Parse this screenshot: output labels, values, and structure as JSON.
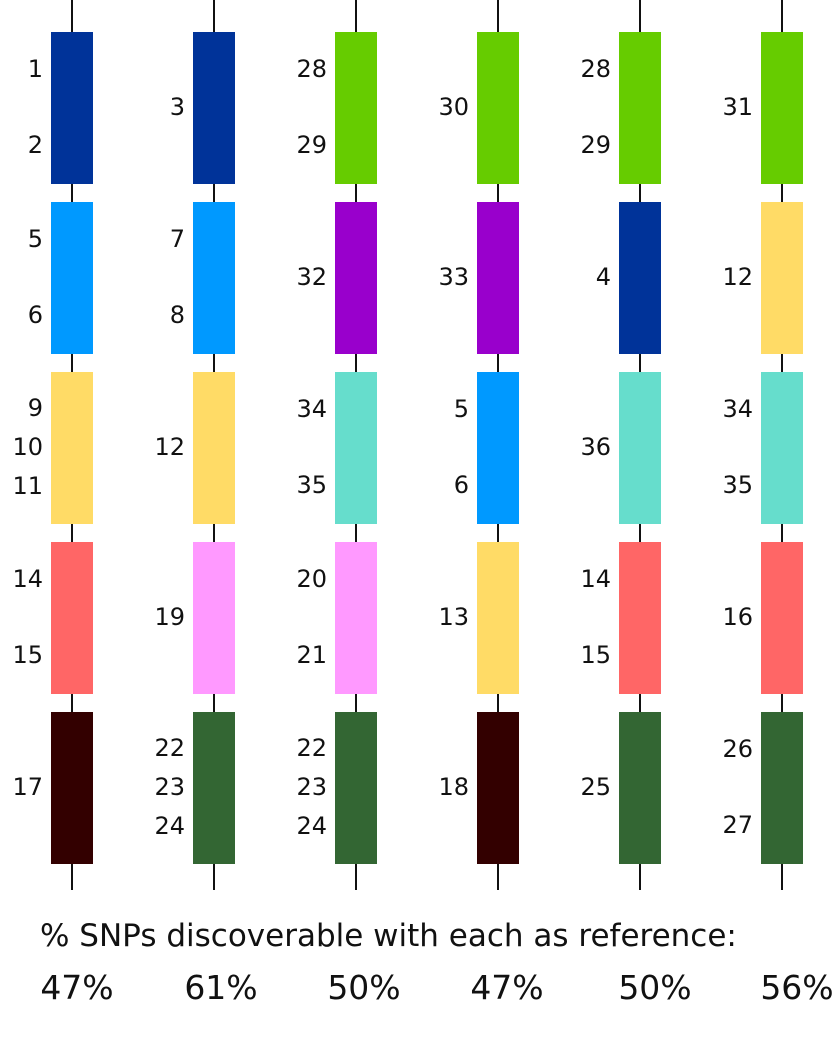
{
  "colors": {
    "dark_blue": "#003399",
    "light_blue": "#0099ff",
    "yellow": "#ffdb66",
    "salmon": "#ff6666",
    "dark_brown": "#330000",
    "pink": "#ff99ff",
    "dark_green": "#336633",
    "lime": "#66cc00",
    "purple": "#9900cc",
    "teal": "#66ddcc",
    "line": "#111111"
  },
  "chromosomes": [
    {
      "name": "chromosome-1",
      "blocks": [
        {
          "color": "dark_blue",
          "labels": [
            "1",
            "2"
          ]
        },
        {
          "color": "light_blue",
          "labels": [
            "5",
            "6"
          ]
        },
        {
          "color": "yellow",
          "labels": [
            "9",
            "10",
            "11"
          ]
        },
        {
          "color": "salmon",
          "labels": [
            "14",
            "15"
          ]
        },
        {
          "color": "dark_brown",
          "labels": [
            "17"
          ]
        }
      ]
    },
    {
      "name": "chromosome-2",
      "blocks": [
        {
          "color": "dark_blue",
          "labels": [
            "3"
          ]
        },
        {
          "color": "light_blue",
          "labels": [
            "7",
            "8"
          ]
        },
        {
          "color": "yellow",
          "labels": [
            "12"
          ]
        },
        {
          "color": "pink",
          "labels": [
            "19"
          ]
        },
        {
          "color": "dark_green",
          "labels": [
            "22",
            "23",
            "24"
          ]
        }
      ]
    },
    {
      "name": "chromosome-3",
      "blocks": [
        {
          "color": "lime",
          "labels": [
            "28",
            "29"
          ]
        },
        {
          "color": "purple",
          "labels": [
            "32"
          ]
        },
        {
          "color": "teal",
          "labels": [
            "34",
            "35"
          ]
        },
        {
          "color": "pink",
          "labels": [
            "20",
            "21"
          ]
        },
        {
          "color": "dark_green",
          "labels": [
            "22",
            "23",
            "24"
          ]
        }
      ]
    },
    {
      "name": "chromosome-4",
      "blocks": [
        {
          "color": "lime",
          "labels": [
            "30"
          ]
        },
        {
          "color": "purple",
          "labels": [
            "33"
          ]
        },
        {
          "color": "light_blue",
          "labels": [
            "5",
            "6"
          ]
        },
        {
          "color": "yellow",
          "labels": [
            "13"
          ]
        },
        {
          "color": "dark_brown",
          "labels": [
            "18"
          ]
        }
      ]
    },
    {
      "name": "chromosome-5",
      "blocks": [
        {
          "color": "lime",
          "labels": [
            "28",
            "29"
          ]
        },
        {
          "color": "dark_blue",
          "labels": [
            "4"
          ]
        },
        {
          "color": "teal",
          "labels": [
            "36"
          ]
        },
        {
          "color": "salmon",
          "labels": [
            "14",
            "15"
          ]
        },
        {
          "color": "dark_green",
          "labels": [
            "25"
          ]
        }
      ]
    },
    {
      "name": "chromosome-6",
      "blocks": [
        {
          "color": "lime",
          "labels": [
            "31"
          ]
        },
        {
          "color": "yellow",
          "labels": [
            "12"
          ]
        },
        {
          "color": "teal",
          "labels": [
            "34",
            "35"
          ]
        },
        {
          "color": "salmon",
          "labels": [
            "16"
          ]
        },
        {
          "color": "dark_green",
          "labels": [
            "26",
            "27"
          ]
        }
      ]
    }
  ],
  "caption": "% SNPs discoverable with each as reference:",
  "percentages": [
    "47%",
    "61%",
    "50%",
    "47%",
    "50%",
    "56%"
  ]
}
